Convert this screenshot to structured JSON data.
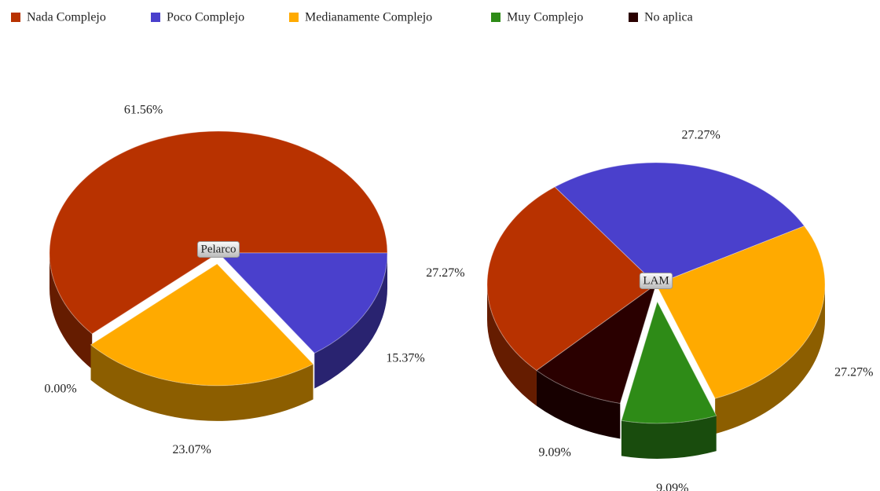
{
  "chart_data": [
    {
      "type": "pie",
      "title": "Pelarco",
      "categories": [
        "Nada Complejo",
        "Poco Complejo",
        "Medianamente Complejo",
        "Muy Complejo"
      ],
      "colors": [
        "#b83200",
        "#4a40cc",
        "#ffaa00",
        "#2e8b17"
      ],
      "values": [
        61.56,
        15.37,
        23.07,
        0
      ],
      "value_labels": [
        "61.56%",
        "15.37%",
        "23.07%",
        "0.00%"
      ]
    },
    {
      "type": "pie",
      "title": "LAM",
      "categories": [
        "Nada Complejo",
        "Poco Complejo",
        "Medianamente Complejo",
        "Muy Complejo",
        "No aplica"
      ],
      "colors": [
        "#b83200",
        "#4a40cc",
        "#ffaa00",
        "#2e8b17",
        "#2a0000"
      ],
      "values": [
        27.27,
        27.27,
        27.27,
        9.09,
        9.09
      ],
      "value_labels": [
        "27.27%",
        "27.27%",
        "27.27%",
        "9.09%",
        "9.09%"
      ]
    }
  ]
}
